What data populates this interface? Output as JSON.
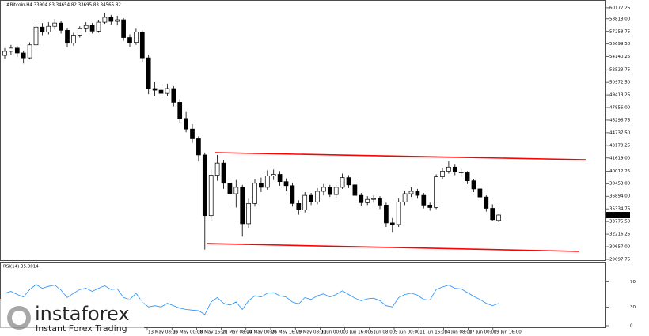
{
  "chart_data": {
    "type": "candlestick",
    "title": "#Bitcoin,H4  33904.83 34654.82 33695.83 34565.82",
    "current_price": "34565.82",
    "ylim": [
      28900,
      60950
    ],
    "yticks": [
      {
        "value": 60177.25,
        "label": "60177.25"
      },
      {
        "value": 58818,
        "label": "58818.00"
      },
      {
        "value": 57258.75,
        "label": "57258.75"
      },
      {
        "value": 55699.5,
        "label": "55699.50"
      },
      {
        "value": 54140.25,
        "label": "54140.25"
      },
      {
        "value": 52523.75,
        "label": "52523.75"
      },
      {
        "value": 50972.5,
        "label": "50972.50"
      },
      {
        "value": 49413.25,
        "label": "49413.25"
      },
      {
        "value": 47856,
        "label": "47856.00"
      },
      {
        "value": 46296.75,
        "label": "46296.75"
      },
      {
        "value": 44737.5,
        "label": "44737.50"
      },
      {
        "value": 43178.25,
        "label": "43178.25"
      },
      {
        "value": 41619,
        "label": "41619.00"
      },
      {
        "value": 40012.25,
        "label": "40012.25"
      },
      {
        "value": 38453,
        "label": "38453.00"
      },
      {
        "value": 36894,
        "label": "36894.00"
      },
      {
        "value": 35334.75,
        "label": "35334.75"
      },
      {
        "value": 33775.5,
        "label": "33775.50"
      },
      {
        "value": 32216.25,
        "label": "32216.25"
      },
      {
        "value": 30657,
        "label": "30657.00"
      },
      {
        "value": 29097.75,
        "label": "29097.75"
      }
    ],
    "x_labels": [
      "13 May 08:00",
      "16 May 00:00",
      "18 May 16:00",
      "21 May 08:00",
      "24 May 00:00",
      "26 May 16:00",
      "29 May 08:00",
      "1 Jun 00:00",
      "3 Jun 16:00",
      "6 Jun 08:00",
      "9 Jun 00:00",
      "11 Jun 16:00",
      "14 Jun 08:00",
      "17 Jun 00:00",
      "19 Jun 16:00"
    ],
    "candles": [
      [
        54300,
        55200,
        53900,
        54800
      ],
      [
        54800,
        55600,
        54400,
        55200
      ],
      [
        55200,
        55500,
        54100,
        54600
      ],
      [
        54600,
        54900,
        53300,
        54000
      ],
      [
        54000,
        55900,
        53800,
        55600
      ],
      [
        55600,
        58200,
        55400,
        57800
      ],
      [
        57800,
        58300,
        56800,
        57200
      ],
      [
        57200,
        58400,
        56900,
        57900
      ],
      [
        57900,
        58800,
        57500,
        58300
      ],
      [
        58300,
        58600,
        57000,
        57400
      ],
      [
        57400,
        57700,
        55300,
        55800
      ],
      [
        55800,
        57100,
        55500,
        56800
      ],
      [
        56800,
        57900,
        56500,
        57600
      ],
      [
        57600,
        58400,
        57200,
        58000
      ],
      [
        58000,
        58300,
        57000,
        57300
      ],
      [
        57300,
        58700,
        57100,
        58400
      ],
      [
        58400,
        59600,
        58200,
        59000
      ],
      [
        59000,
        59300,
        58100,
        58500
      ],
      [
        58500,
        59200,
        58000,
        58700
      ],
      [
        58700,
        58900,
        56100,
        56500
      ],
      [
        56500,
        56900,
        55300,
        55900
      ],
      [
        55900,
        57600,
        55600,
        57200
      ],
      [
        57200,
        57400,
        53500,
        54000
      ],
      [
        54000,
        54400,
        49500,
        50200
      ],
      [
        50200,
        51000,
        49300,
        50000
      ],
      [
        50000,
        50600,
        49000,
        49600
      ],
      [
        49600,
        50800,
        49300,
        50200
      ],
      [
        50200,
        50500,
        48000,
        48500
      ],
      [
        48500,
        48900,
        46000,
        46500
      ],
      [
        46500,
        47300,
        44800,
        45200
      ],
      [
        45200,
        45800,
        43500,
        44000
      ],
      [
        44000,
        44300,
        41200,
        42000
      ],
      [
        42000,
        42300,
        30300,
        34500
      ],
      [
        34500,
        40200,
        33800,
        39500
      ],
      [
        39500,
        42000,
        38800,
        41000
      ],
      [
        41000,
        41400,
        37800,
        38500
      ],
      [
        38500,
        39000,
        36000,
        37200
      ],
      [
        37200,
        38900,
        35500,
        38000
      ],
      [
        38000,
        38300,
        31900,
        33500
      ],
      [
        33500,
        36600,
        33000,
        36000
      ],
      [
        36000,
        39000,
        35600,
        38500
      ],
      [
        38500,
        39200,
        37400,
        38000
      ],
      [
        38000,
        40100,
        37700,
        39400
      ],
      [
        39400,
        40200,
        38900,
        39600
      ],
      [
        39600,
        40000,
        38200,
        38700
      ],
      [
        38700,
        39100,
        37500,
        38200
      ],
      [
        38200,
        38500,
        35600,
        36000
      ],
      [
        36000,
        36400,
        34600,
        35200
      ],
      [
        35200,
        37400,
        34900,
        37000
      ],
      [
        37000,
        37300,
        35800,
        36200
      ],
      [
        36200,
        37900,
        35900,
        37500
      ],
      [
        37500,
        38400,
        37000,
        38000
      ],
      [
        38000,
        38300,
        36800,
        37100
      ],
      [
        37100,
        38300,
        36700,
        38000
      ],
      [
        38000,
        39700,
        37800,
        39200
      ],
      [
        39200,
        39500,
        37900,
        38300
      ],
      [
        38300,
        38600,
        36600,
        37000
      ],
      [
        37000,
        37300,
        35700,
        36100
      ],
      [
        36100,
        36900,
        35800,
        36500
      ],
      [
        36500,
        37000,
        36100,
        36600
      ],
      [
        36600,
        36900,
        35300,
        35800
      ],
      [
        35800,
        36100,
        33100,
        33600
      ],
      [
        33600,
        34200,
        32400,
        33400
      ],
      [
        33400,
        36600,
        33100,
        36200
      ],
      [
        36200,
        37600,
        35800,
        37200
      ],
      [
        37200,
        38000,
        36800,
        37500
      ],
      [
        37500,
        37800,
        36600,
        37000
      ],
      [
        37000,
        37300,
        35400,
        35800
      ],
      [
        35800,
        36100,
        35100,
        35500
      ],
      [
        35500,
        39600,
        35300,
        39300
      ],
      [
        39300,
        40400,
        39000,
        40000
      ],
      [
        40000,
        41200,
        39700,
        40500
      ],
      [
        40500,
        40800,
        39500,
        39900
      ],
      [
        39900,
        40300,
        39300,
        39800
      ],
      [
        39800,
        40000,
        38400,
        38800
      ],
      [
        38800,
        39000,
        37400,
        37800
      ],
      [
        37800,
        38100,
        36400,
        36800
      ],
      [
        36800,
        37000,
        35000,
        35400
      ],
      [
        35400,
        35900,
        33800,
        34000
      ],
      [
        33904.83,
        34654.82,
        33695.83,
        34565.82
      ]
    ],
    "rsi": {
      "title": "RSI(14) 35.8014",
      "color": "#1e90ff",
      "ylim": [
        0,
        100
      ],
      "yticks": [
        0,
        30,
        70
      ],
      "values": [
        52,
        55,
        50,
        46,
        58,
        66,
        60,
        63,
        65,
        57,
        45,
        52,
        58,
        60,
        55,
        60,
        64,
        58,
        59,
        45,
        42,
        52,
        38,
        30,
        32,
        30,
        36,
        32,
        28,
        26,
        25,
        24,
        18,
        38,
        45,
        36,
        33,
        38,
        26,
        40,
        48,
        46,
        52,
        53,
        48,
        46,
        38,
        35,
        45,
        42,
        48,
        51,
        46,
        50,
        56,
        50,
        44,
        40,
        43,
        44,
        40,
        32,
        30,
        45,
        50,
        52,
        49,
        42,
        41,
        58,
        62,
        65,
        60,
        59,
        53,
        47,
        42,
        36,
        32,
        35.8014
      ]
    },
    "watermark": {
      "brand": "instaforex",
      "tagline": "Instant Forex Trading"
    }
  }
}
